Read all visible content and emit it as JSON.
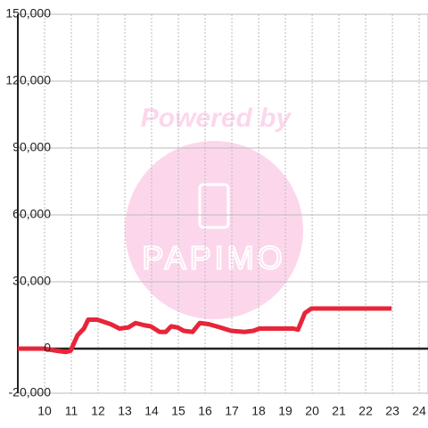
{
  "chart_data": {
    "type": "line",
    "watermark": [
      "Powered by",
      "PAPIMO"
    ],
    "x": [
      9,
      9.97,
      10.47,
      10.8,
      10.97,
      11.23,
      11.47,
      11.63,
      11.97,
      12.47,
      12.8,
      13.13,
      13.4,
      13.73,
      13.97,
      14.3,
      14.53,
      14.73,
      14.97,
      15.2,
      15.53,
      15.8,
      16.13,
      16.57,
      16.97,
      17.47,
      17.8,
      18.03,
      19.3,
      19.47,
      19.73,
      19.97,
      22.97
    ],
    "series": [
      {
        "color": "#e8253a",
        "values": [
          0,
          0,
          -1000,
          -1500,
          -1000,
          6000,
          9000,
          13000,
          13000,
          11000,
          9000,
          9500,
          11500,
          10500,
          10000,
          7500,
          7500,
          10000,
          9500,
          8000,
          7500,
          11500,
          11000,
          9500,
          8000,
          7500,
          8000,
          9000,
          9000,
          8500,
          16000,
          18000,
          18000
        ]
      }
    ],
    "xlim": [
      9,
      24.33
    ],
    "xticks": [
      10,
      11,
      12,
      13,
      14,
      15,
      16,
      17,
      18,
      19,
      20,
      21,
      22,
      23,
      24
    ],
    "ylim": [
      -20000,
      150000
    ],
    "yticks": [
      {
        "value": -20000,
        "label": "-20,000"
      },
      0,
      {
        "value": 30000,
        "label": "30,000"
      },
      {
        "value": 60000,
        "label": "60,000"
      },
      {
        "value": 90000,
        "label": "90,000"
      },
      {
        "value": 120000,
        "label": "120,000"
      },
      {
        "value": 150000,
        "label": "150,000"
      }
    ],
    "grid": true
  }
}
